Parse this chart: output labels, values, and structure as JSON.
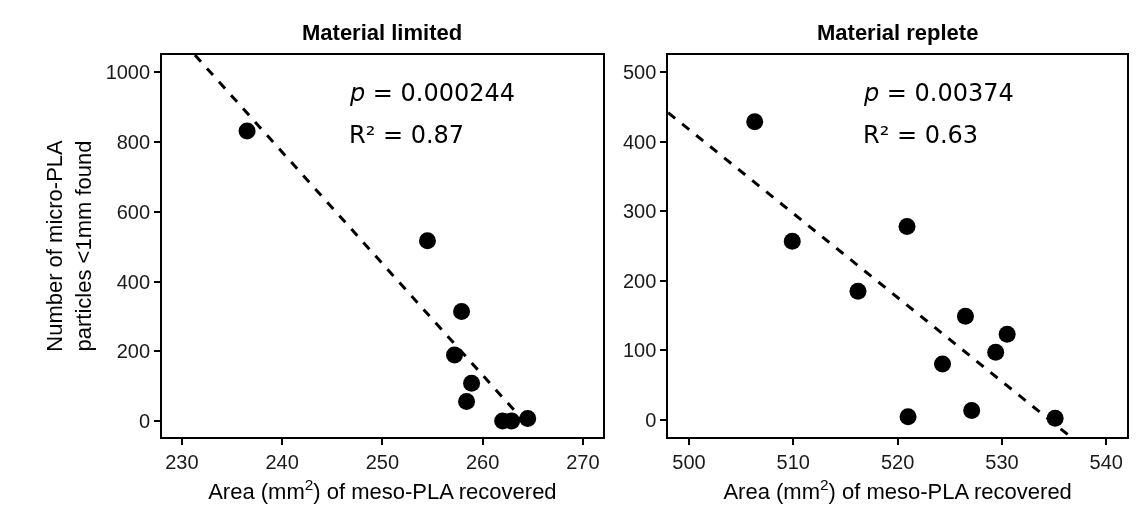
{
  "chart_data": [
    {
      "type": "scatter",
      "title": "Material limited",
      "xlabel": "Area (mm$^{2}$) of meso-PLA recovered",
      "ylabel": "Number of micro-PLA\nparticles <1mm found",
      "xlim": [
        228,
        272
      ],
      "xticks": [
        230,
        240,
        250,
        260,
        270
      ],
      "ylim": [
        -46,
        1050
      ],
      "yticks": [
        0,
        200,
        400,
        600,
        800,
        1000
      ],
      "marker": "circle",
      "annotations": [
        "p = 0.000244",
        "R² = 0.87"
      ],
      "series": [
        {
          "color": "#000000",
          "x": [
            236.5,
            254.5,
            257.9,
            257.2,
            258.9,
            258.4,
            262.0,
            262.9,
            264.5
          ],
          "values": [
            832,
            517,
            314,
            189,
            108,
            56,
            0,
            0,
            7
          ]
        },
        {
          "type": "line",
          "line_style": "dashed",
          "marker": "none",
          "color": "#000000",
          "x": [
            231.3,
            264.8
          ],
          "values": [
            1050,
            -22
          ]
        }
      ]
    },
    {
      "type": "scatter",
      "title": "Material replete",
      "xlabel": "Area (mm$^{2}$) of meso-PLA recovered",
      "xlim": [
        498,
        542
      ],
      "xticks": [
        500,
        510,
        520,
        530,
        540
      ],
      "ylim": [
        -25,
        525
      ],
      "yticks": [
        0,
        100,
        200,
        300,
        400,
        500
      ],
      "marker": "circle",
      "annotations": [
        "p = 0.00374",
        "R² = 0.63"
      ],
      "series": [
        {
          "color": "#000000",
          "x": [
            506.3,
            509.9,
            520.9,
            516.2,
            526.5,
            530.5,
            529.4,
            524.3,
            521.0,
            527.1,
            535.1
          ],
          "values": [
            429,
            257,
            278,
            185,
            149,
            123,
            97,
            80,
            4,
            13,
            2
          ]
        },
        {
          "type": "line",
          "line_style": "dashed",
          "marker": "none",
          "color": "#000000",
          "x": [
            498.0,
            536.6
          ],
          "values": [
            442,
            -25
          ]
        }
      ]
    }
  ]
}
